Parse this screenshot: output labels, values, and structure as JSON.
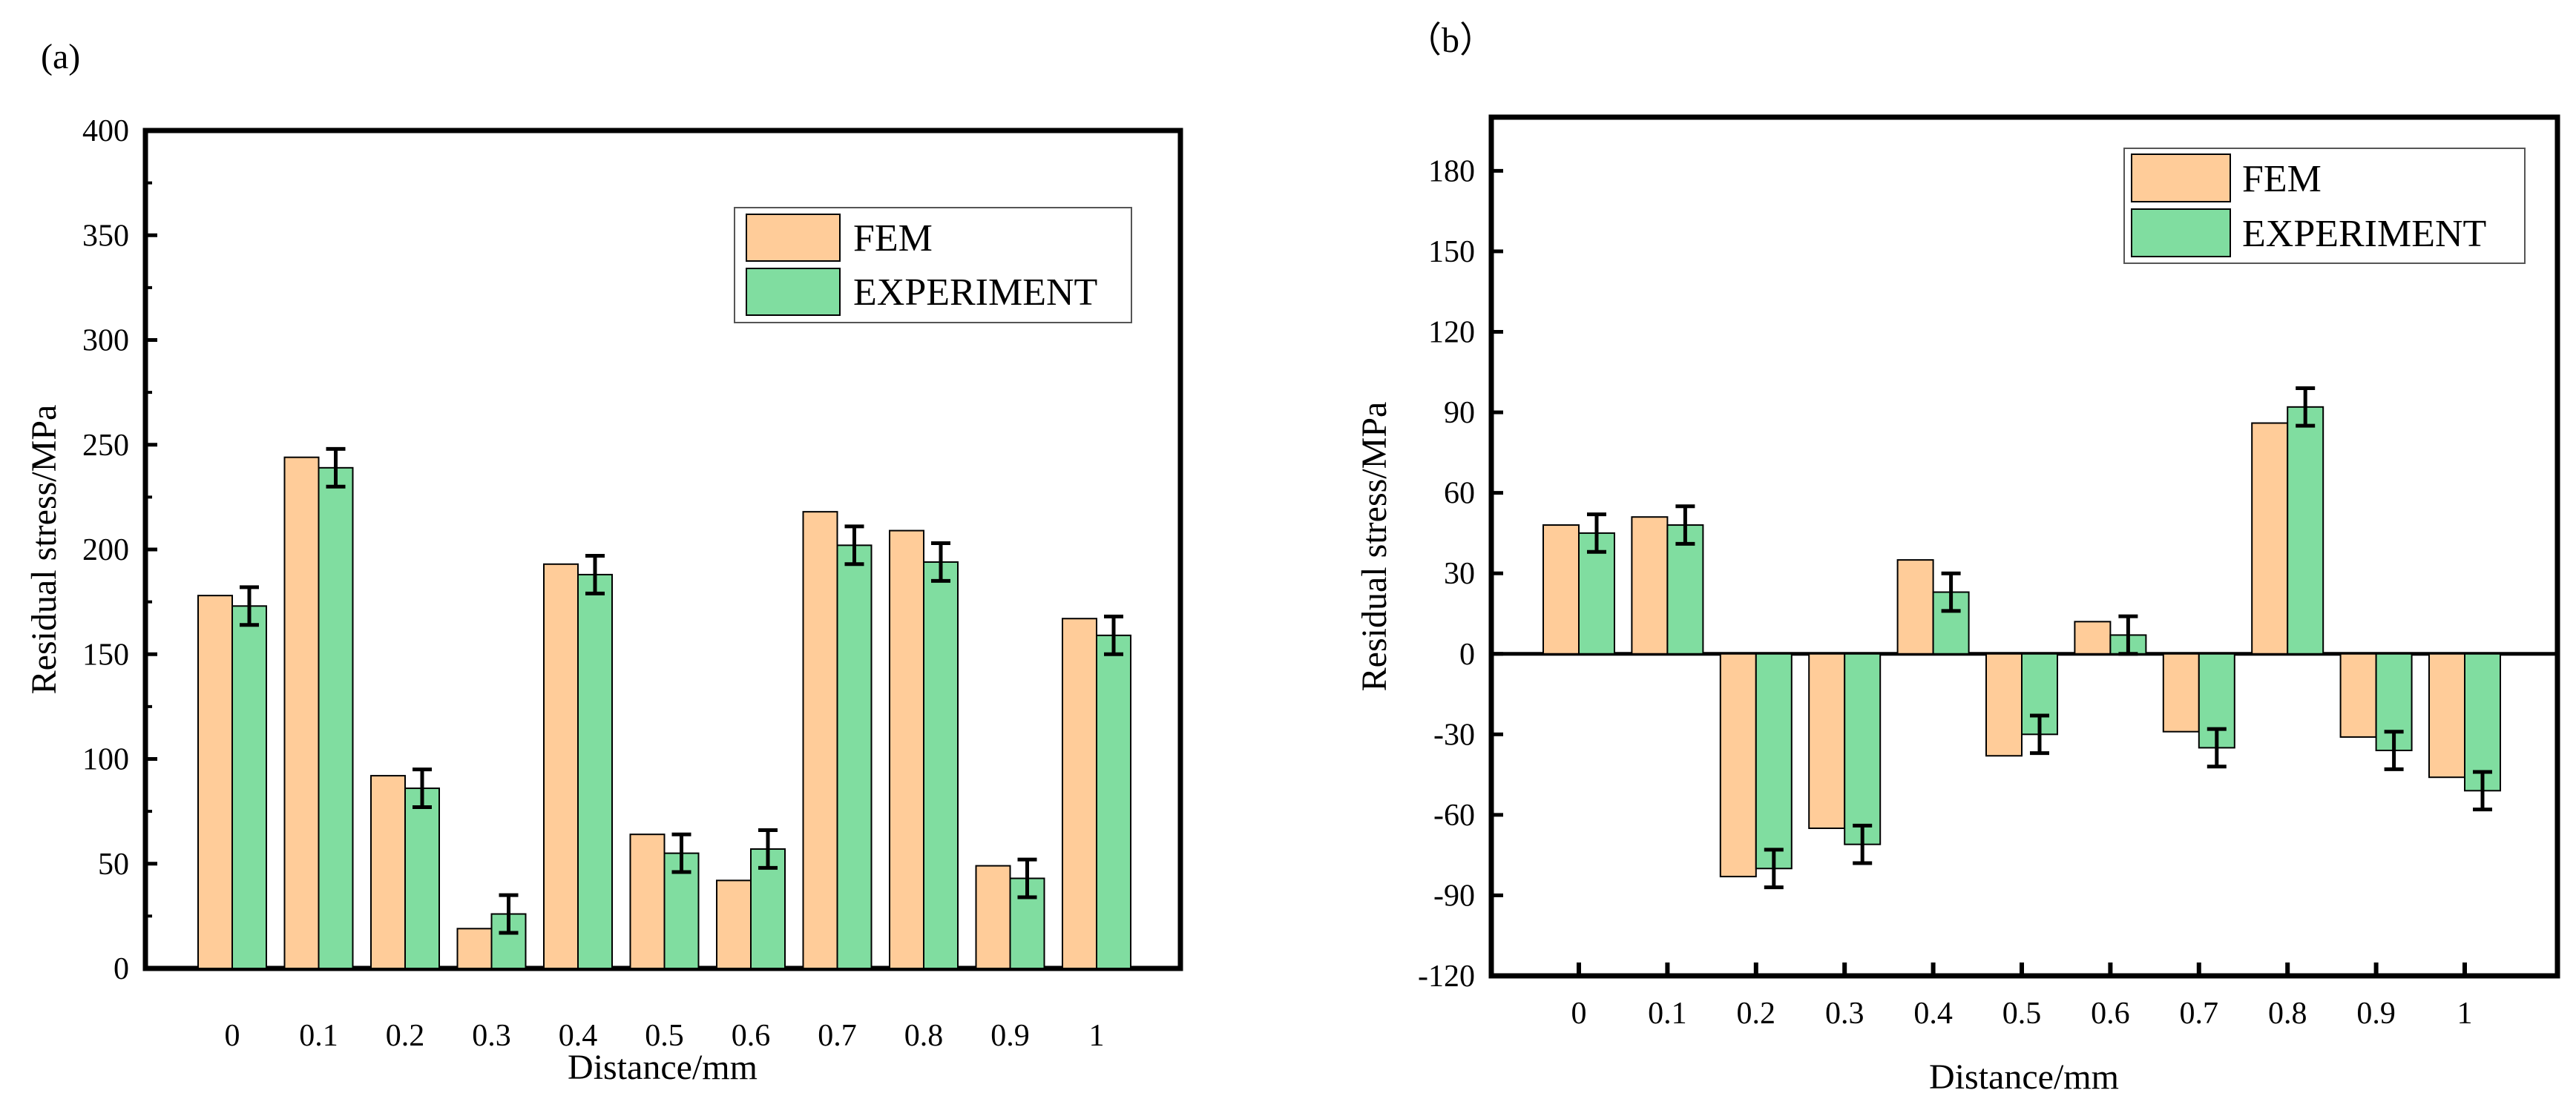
{
  "colors": {
    "fem": "#FFCC99",
    "experiment": "#80DDA0",
    "axis": "#000000"
  },
  "chart_data": [
    {
      "type": "bar",
      "panel_label": "(a)",
      "xlabel": "Distance/mm",
      "ylabel": "Residual stress/MPa",
      "ylim": [
        0,
        400
      ],
      "yticks": [
        0,
        50,
        100,
        150,
        200,
        250,
        300,
        350,
        400
      ],
      "ytick_labels": [
        "0",
        "50",
        "100",
        "150",
        "200",
        "250",
        "300",
        "350",
        "400"
      ],
      "categories": [
        "0",
        "0.1",
        "0.2",
        "0.3",
        "0.4",
        "0.5",
        "0.6",
        "0.7",
        "0.8",
        "0.9",
        "1"
      ],
      "legend_position": "top-right",
      "series": [
        {
          "name": "FEM",
          "values": [
            178,
            244,
            92,
            19,
            193,
            64,
            42,
            218,
            209,
            49,
            167
          ]
        },
        {
          "name": "EXPERIMENT",
          "values": [
            173,
            239,
            86,
            26,
            188,
            55,
            57,
            202,
            194,
            43,
            159
          ],
          "errors": [
            9,
            9,
            9,
            9,
            9,
            9,
            9,
            9,
            9,
            9,
            9
          ]
        }
      ]
    },
    {
      "type": "bar",
      "panel_label": "（b）",
      "xlabel": "Distance/mm",
      "ylabel": "Residual stress/MPa",
      "ylim": [
        -120,
        200
      ],
      "yticks": [
        -120,
        -90,
        -60,
        -30,
        0,
        30,
        60,
        90,
        120,
        150,
        180
      ],
      "ytick_labels": [
        "-120",
        "-90",
        "-60",
        "-30",
        "0",
        "30",
        "60",
        "90",
        "120",
        "150",
        "180"
      ],
      "categories": [
        "0",
        "0.1",
        "0.2",
        "0.3",
        "0.4",
        "0.5",
        "0.6",
        "0.7",
        "0.8",
        "0.9",
        "1"
      ],
      "legend_position": "top-right",
      "series": [
        {
          "name": "FEM",
          "values": [
            48,
            51,
            -83,
            -65,
            35,
            -38,
            12,
            -29,
            86,
            -31,
            -46
          ]
        },
        {
          "name": "EXPERIMENT",
          "values": [
            45,
            48,
            -80,
            -71,
            23,
            -30,
            7,
            -35,
            92,
            -36,
            -51
          ],
          "errors": [
            7,
            7,
            7,
            7,
            7,
            7,
            7,
            7,
            7,
            7,
            7
          ]
        }
      ]
    }
  ]
}
